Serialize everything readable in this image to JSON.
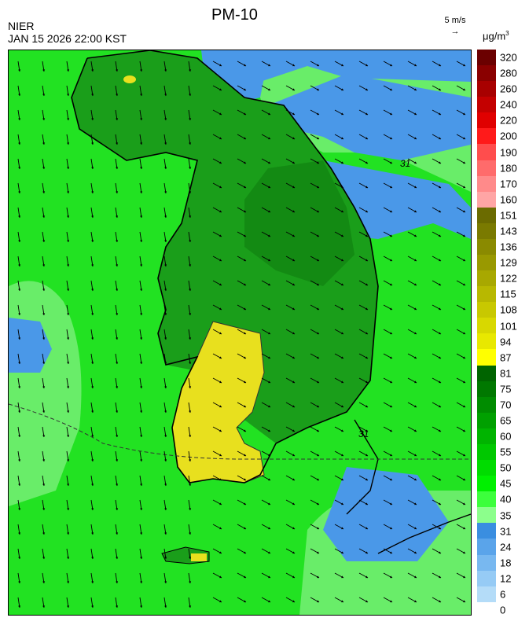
{
  "header": {
    "agency": "NIER",
    "datetime": "JAN 15 2026 22:00 KST",
    "title": "PM-10",
    "wind_ref": "5 m/s",
    "unit": "μg/m",
    "unit_sup": "3"
  },
  "colorbar": {
    "labels": [
      "320",
      "280",
      "260",
      "240",
      "220",
      "200",
      "190",
      "180",
      "170",
      "160",
      "151",
      "143",
      "136",
      "129",
      "122",
      "115",
      "108",
      "101",
      "94",
      "87",
      "81",
      "75",
      "70",
      "65",
      "60",
      "55",
      "50",
      "45",
      "40",
      "35",
      "31",
      "24",
      "18",
      "12",
      "6",
      "0"
    ],
    "colors": [
      "#6b0000",
      "#8a0000",
      "#a80000",
      "#c40000",
      "#e00000",
      "#ff1a1a",
      "#ff4d4d",
      "#ff6b6b",
      "#ff8a8a",
      "#ffa5a5",
      "#6b6b00",
      "#7a7a00",
      "#8a8a00",
      "#999900",
      "#a8a800",
      "#b8b800",
      "#c8c800",
      "#d8d800",
      "#e8e800",
      "#ffff00",
      "#006400",
      "#007800",
      "#008c00",
      "#00a000",
      "#00b400",
      "#00c800",
      "#00dc00",
      "#00f000",
      "#3cff3c",
      "#8cff8c",
      "#3a8ee0",
      "#5aa4ea",
      "#78b8f0",
      "#96cbf5",
      "#b4dcf8"
    ]
  },
  "map": {
    "contour_label": "31",
    "colors": {
      "sea_green": "#22e222",
      "land_dark": "#1a9e1a",
      "yellow_zone": "#e8e01e",
      "blue_zone": "#4a98e8",
      "light_green": "#7cf07c"
    }
  }
}
